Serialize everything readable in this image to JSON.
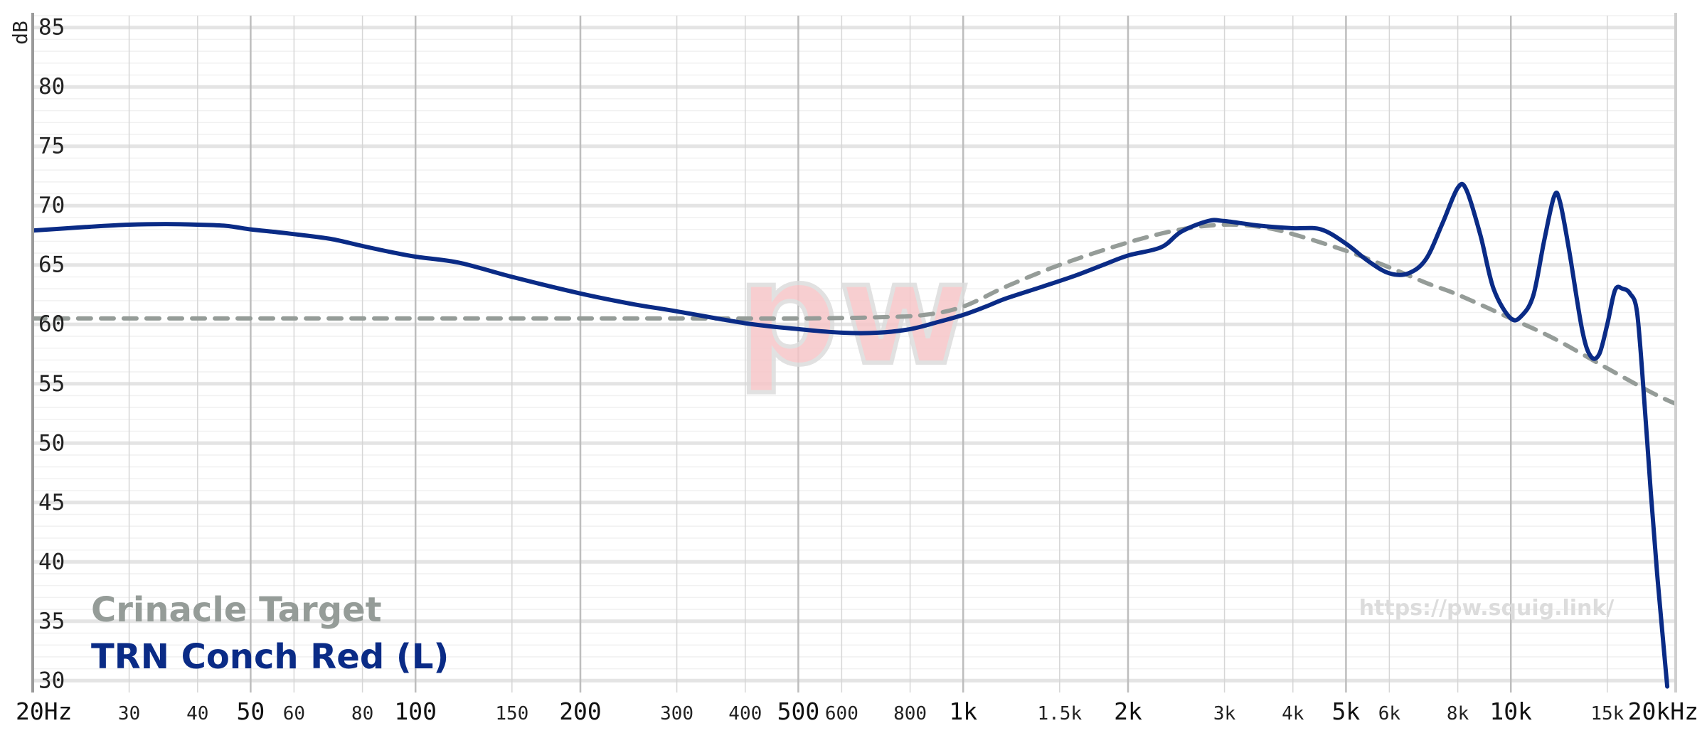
{
  "chart_data": {
    "type": "line",
    "title": "",
    "ylabel": "dB",
    "xlabel": "",
    "x_scale": "log",
    "xlim": [
      20,
      20000
    ],
    "ylim": [
      29,
      86
    ],
    "y_ticks": [
      85,
      80,
      75,
      70,
      65,
      60,
      55,
      50,
      45,
      40,
      35,
      30
    ],
    "x_ticks": [
      {
        "value": 20,
        "label": "20Hz",
        "major": true
      },
      {
        "value": 30,
        "label": "30",
        "major": false
      },
      {
        "value": 40,
        "label": "40",
        "major": false
      },
      {
        "value": 50,
        "label": "50",
        "major": true
      },
      {
        "value": 60,
        "label": "60",
        "major": false
      },
      {
        "value": 80,
        "label": "80",
        "major": false
      },
      {
        "value": 100,
        "label": "100",
        "major": true
      },
      {
        "value": 150,
        "label": "150",
        "major": false
      },
      {
        "value": 200,
        "label": "200",
        "major": true
      },
      {
        "value": 300,
        "label": "300",
        "major": false
      },
      {
        "value": 400,
        "label": "400",
        "major": false
      },
      {
        "value": 500,
        "label": "500",
        "major": true
      },
      {
        "value": 600,
        "label": "600",
        "major": false
      },
      {
        "value": 800,
        "label": "800",
        "major": false
      },
      {
        "value": 1000,
        "label": "1k",
        "major": true
      },
      {
        "value": 1500,
        "label": "1.5k",
        "major": false
      },
      {
        "value": 2000,
        "label": "2k",
        "major": true
      },
      {
        "value": 3000,
        "label": "3k",
        "major": false
      },
      {
        "value": 4000,
        "label": "4k",
        "major": false
      },
      {
        "value": 5000,
        "label": "5k",
        "major": true
      },
      {
        "value": 6000,
        "label": "6k",
        "major": false
      },
      {
        "value": 8000,
        "label": "8k",
        "major": false
      },
      {
        "value": 10000,
        "label": "10k",
        "major": true
      },
      {
        "value": 15000,
        "label": "15k",
        "major": false
      },
      {
        "value": 20000,
        "label": "20kHz",
        "major": true
      }
    ],
    "grid": true,
    "legend_position": "bottom-left",
    "series": [
      {
        "name": "Crinacle Target",
        "color": "#959c98",
        "dash": true,
        "points": [
          [
            20,
            60.5
          ],
          [
            50,
            60.5
          ],
          [
            100,
            60.5
          ],
          [
            200,
            60.5
          ],
          [
            300,
            60.5
          ],
          [
            500,
            60.5
          ],
          [
            700,
            60.6
          ],
          [
            850,
            60.8
          ],
          [
            1000,
            61.5
          ],
          [
            1200,
            63.2
          ],
          [
            1500,
            65.0
          ],
          [
            2000,
            66.9
          ],
          [
            2500,
            68.0
          ],
          [
            3000,
            68.4
          ],
          [
            3500,
            68.2
          ],
          [
            4000,
            67.6
          ],
          [
            5000,
            66.2
          ],
          [
            6000,
            64.8
          ],
          [
            7000,
            63.5
          ],
          [
            8000,
            62.5
          ],
          [
            10000,
            60.5
          ],
          [
            12000,
            58.8
          ],
          [
            15000,
            56.3
          ],
          [
            18000,
            54.3
          ],
          [
            20000,
            53.3
          ]
        ]
      },
      {
        "name": "TRN Conch Red (L)",
        "color": "#0a2b86",
        "dash": false,
        "points": [
          [
            20,
            67.9
          ],
          [
            25,
            68.2
          ],
          [
            30,
            68.4
          ],
          [
            35,
            68.45
          ],
          [
            40,
            68.4
          ],
          [
            45,
            68.3
          ],
          [
            50,
            68.0
          ],
          [
            55,
            67.8
          ],
          [
            60,
            67.6
          ],
          [
            70,
            67.2
          ],
          [
            80,
            66.6
          ],
          [
            90,
            66.1
          ],
          [
            100,
            65.7
          ],
          [
            120,
            65.2
          ],
          [
            150,
            64.0
          ],
          [
            200,
            62.6
          ],
          [
            250,
            61.7
          ],
          [
            300,
            61.1
          ],
          [
            400,
            60.1
          ],
          [
            500,
            59.6
          ],
          [
            600,
            59.3
          ],
          [
            700,
            59.3
          ],
          [
            800,
            59.6
          ],
          [
            900,
            60.2
          ],
          [
            1000,
            60.8
          ],
          [
            1100,
            61.5
          ],
          [
            1200,
            62.2
          ],
          [
            1400,
            63.2
          ],
          [
            1600,
            64.1
          ],
          [
            1800,
            65.0
          ],
          [
            2000,
            65.8
          ],
          [
            2300,
            66.5
          ],
          [
            2500,
            67.8
          ],
          [
            2800,
            68.7
          ],
          [
            3000,
            68.7
          ],
          [
            3500,
            68.3
          ],
          [
            4000,
            68.1
          ],
          [
            4500,
            68.0
          ],
          [
            5000,
            66.8
          ],
          [
            5500,
            65.3
          ],
          [
            6000,
            64.3
          ],
          [
            6500,
            64.3
          ],
          [
            7000,
            65.5
          ],
          [
            7500,
            68.5
          ],
          [
            8000,
            71.5
          ],
          [
            8300,
            71.3
          ],
          [
            8800,
            67.5
          ],
          [
            9300,
            63.0
          ],
          [
            10000,
            60.5
          ],
          [
            10500,
            60.8
          ],
          [
            11000,
            62.5
          ],
          [
            11500,
            67.0
          ],
          [
            12000,
            70.8
          ],
          [
            12300,
            70.3
          ],
          [
            12800,
            66.0
          ],
          [
            13500,
            59.5
          ],
          [
            14000,
            57.3
          ],
          [
            14500,
            57.5
          ],
          [
            15000,
            60.0
          ],
          [
            15500,
            62.9
          ],
          [
            16000,
            63.0
          ],
          [
            16500,
            62.6
          ],
          [
            17000,
            61.0
          ],
          [
            17500,
            54.0
          ],
          [
            18000,
            46.0
          ],
          [
            18500,
            39.0
          ],
          [
            19000,
            33.0
          ],
          [
            19300,
            29.5
          ]
        ]
      }
    ]
  },
  "watermark": {
    "logo_text": "pw",
    "url": "https://pw.squig.link/"
  }
}
